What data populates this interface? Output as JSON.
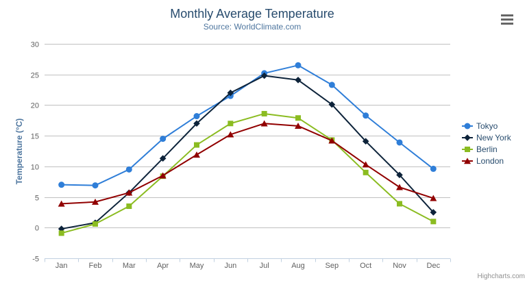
{
  "chart_data": {
    "type": "line",
    "title": "Monthly Average Temperature",
    "subtitle": "Source: WorldClimate.com",
    "categories": [
      "Jan",
      "Feb",
      "Mar",
      "Apr",
      "May",
      "Jun",
      "Jul",
      "Aug",
      "Sep",
      "Oct",
      "Nov",
      "Dec"
    ],
    "series": [
      {
        "name": "Tokyo",
        "color": "#2f7ed8",
        "marker": "circle",
        "values": [
          7.0,
          6.9,
          9.5,
          14.5,
          18.2,
          21.5,
          25.2,
          26.5,
          23.3,
          18.3,
          13.9,
          9.6
        ]
      },
      {
        "name": "New York",
        "color": "#0d233a",
        "marker": "diamond",
        "values": [
          -0.2,
          0.8,
          5.7,
          11.3,
          17.0,
          22.0,
          24.8,
          24.1,
          20.1,
          14.1,
          8.6,
          2.5
        ]
      },
      {
        "name": "Berlin",
        "color": "#8bbc21",
        "marker": "square",
        "values": [
          -0.9,
          0.6,
          3.5,
          8.4,
          13.5,
          17.0,
          18.6,
          17.9,
          14.3,
          9.0,
          3.9,
          1.0
        ]
      },
      {
        "name": "London",
        "color": "#910000",
        "marker": "triangle",
        "values": [
          3.9,
          4.2,
          5.7,
          8.5,
          11.9,
          15.2,
          17.0,
          16.6,
          14.2,
          10.3,
          6.6,
          4.8
        ]
      }
    ],
    "xlabel": "",
    "ylabel": "Temperature (°C)",
    "ylim": [
      -5,
      30
    ],
    "y_tick_interval": 5,
    "grid": true,
    "legend_position": "right"
  },
  "credits": "Highcharts.com",
  "menu": {
    "icon": "hamburger-icon"
  },
  "colors": {
    "grid": "#C0C0C0",
    "axis_line": "#C0D0E0",
    "tick": "#C0D0E0",
    "axis_labels": "#606060",
    "title": "#274b6d",
    "subtitle": "#4d759e",
    "axis_title": "#4d759e",
    "legend_text": "#274b6d",
    "credits": "#909090",
    "menu_bars": "#666666"
  }
}
